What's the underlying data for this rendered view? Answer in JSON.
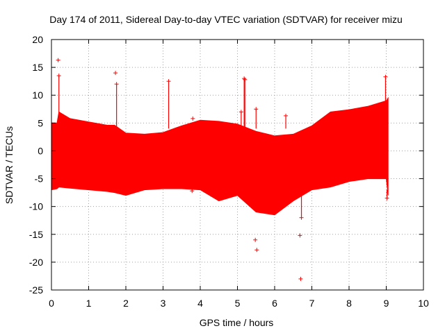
{
  "colors": {
    "series": "#ff0000",
    "grid": "#a0a0a0",
    "axis": "#000000"
  },
  "chart_data": {
    "type": "scatter",
    "title": "Day 174 of 2011, Sidereal Day-to-day VTEC variation (SDTVAR) for receiver mizu",
    "xlabel": "GPS time / hours",
    "ylabel": "SDTVAR / TECUs",
    "xlim": [
      0,
      10
    ],
    "ylim": [
      -25,
      20
    ],
    "xticks": [
      0,
      1,
      2,
      3,
      4,
      5,
      6,
      7,
      8,
      9,
      10
    ],
    "yticks": [
      -25,
      -20,
      -15,
      -10,
      -5,
      0,
      5,
      10,
      15,
      20
    ],
    "grid": true,
    "series": [
      {
        "name": "SDTVAR",
        "marker": "plus",
        "envelope": {
          "x": [
            0.0,
            0.15,
            0.2,
            0.5,
            1.0,
            1.5,
            1.7,
            2.0,
            2.5,
            3.0,
            3.5,
            4.0,
            4.5,
            5.0,
            5.5,
            6.0,
            6.5,
            7.0,
            7.5,
            8.0,
            8.5,
            9.0,
            9.05
          ],
          "upper": [
            5.0,
            5.0,
            7.0,
            5.8,
            5.2,
            4.6,
            4.6,
            3.2,
            3.0,
            3.3,
            4.5,
            5.5,
            5.3,
            4.8,
            3.5,
            2.7,
            3.0,
            4.5,
            7.0,
            7.4,
            8.0,
            9.0,
            9.5
          ],
          "lower": [
            -7.0,
            -6.8,
            -6.5,
            -6.7,
            -7.0,
            -7.3,
            -7.5,
            -8.0,
            -7.0,
            -6.8,
            -6.8,
            -7.0,
            -9.0,
            -8.0,
            -11.0,
            -11.5,
            -9.0,
            -7.0,
            -6.5,
            -5.5,
            -5.0,
            -5.0,
            -8.0
          ]
        },
        "outliers": {
          "x": [
            0.18,
            0.2,
            1.72,
            1.75,
            3.15,
            3.8,
            3.78,
            5.1,
            5.18,
            5.2,
            5.5,
            5.52,
            5.48,
            6.3,
            6.68,
            6.7,
            6.72,
            8.98,
            9.02
          ],
          "y": [
            16.3,
            13.5,
            14.0,
            12.0,
            12.5,
            5.8,
            -7.2,
            7.0,
            13.0,
            12.8,
            7.5,
            -17.8,
            -16.0,
            6.3,
            -15.2,
            -23.0,
            -12.0,
            13.3,
            -8.5
          ]
        }
      }
    ]
  }
}
